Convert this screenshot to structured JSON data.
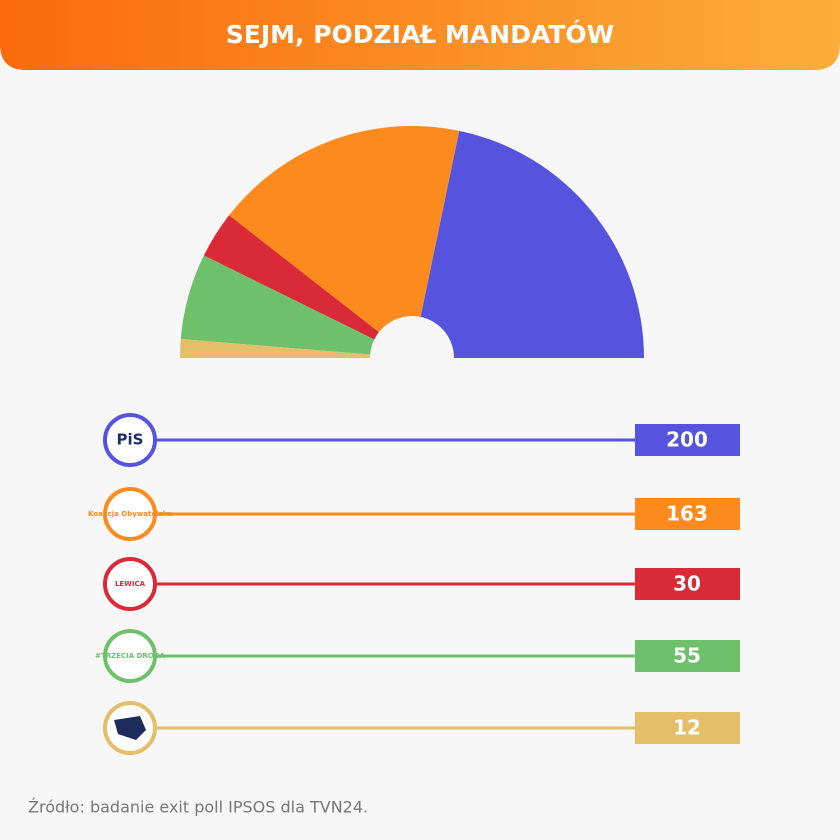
{
  "chart_data": {
    "type": "semidonut",
    "title": "SEJM, PODZIAŁ MANDATÓW",
    "categories": [
      "PiS",
      "Koalicja Obywatelska",
      "LEWICA",
      "#TRZECIA DROGA",
      null
    ],
    "values": [
      200,
      163,
      30,
      55,
      12
    ],
    "colors": [
      "#5654de",
      "#fd8a1c",
      "#da2a38",
      "#6fc06b",
      "#e4be68"
    ],
    "source": "Źródło: badanie exit poll IPSOS dla TVN24."
  }
}
